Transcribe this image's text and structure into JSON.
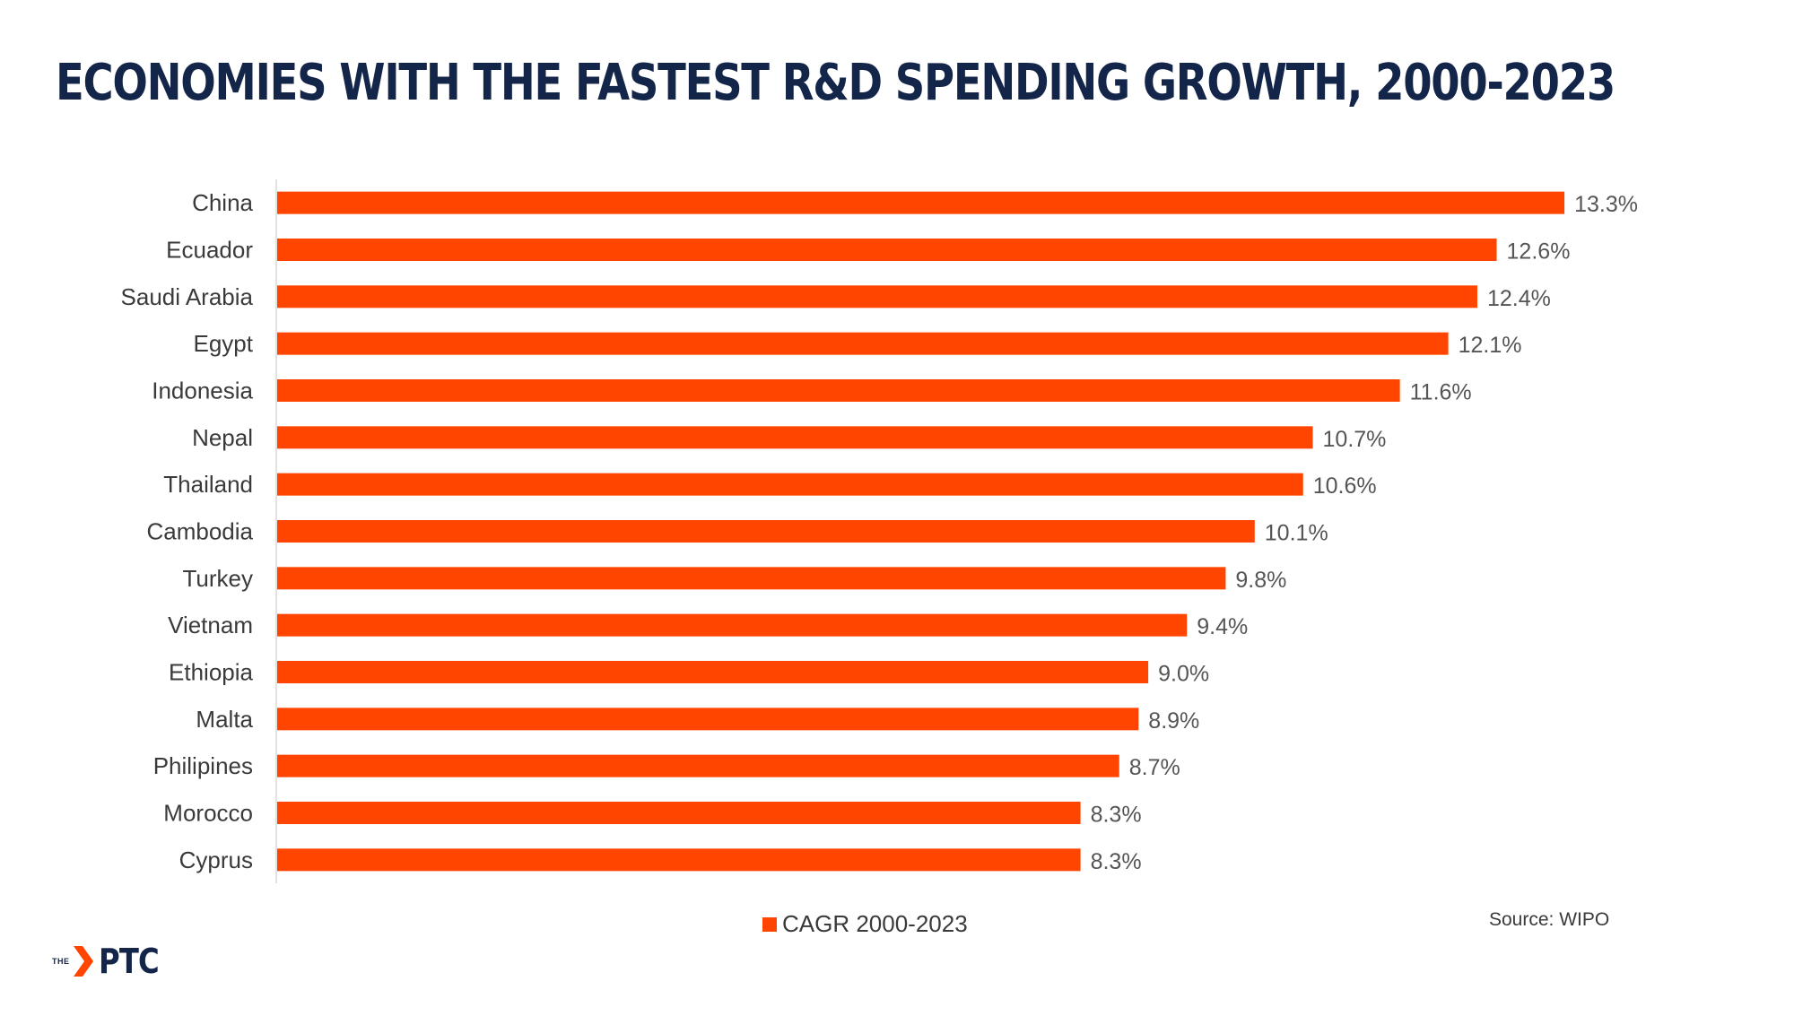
{
  "page": {
    "title": "ECONOMIES WITH THE FASTEST R&D SPENDING GROWTH, 2000-2023",
    "source": "Source: WIPO"
  },
  "logo": {
    "prefix": "THE",
    "text": "PTC"
  },
  "colors": {
    "bar": "#ff4500",
    "title": "#14254a",
    "logo_accent": "#ff4500"
  },
  "chart_data": {
    "type": "bar",
    "orientation": "horizontal",
    "title": "ECONOMIES WITH THE FASTEST R&D SPENDING GROWTH, 2000-2023",
    "xlabel": "",
    "ylabel": "",
    "categories": [
      "China",
      "Ecuador",
      "Saudi Arabia",
      "Egypt",
      "Indonesia",
      "Nepal",
      "Thailand",
      "Cambodia",
      "Turkey",
      "Vietnam",
      "Ethiopia",
      "Malta",
      "Philipines",
      "Morocco",
      "Cyprus"
    ],
    "series": [
      {
        "name": "CAGR 2000-2023",
        "values": [
          13.3,
          12.6,
          12.4,
          12.1,
          11.6,
          10.7,
          10.6,
          10.1,
          9.8,
          9.4,
          9.0,
          8.9,
          8.7,
          8.3,
          8.3
        ],
        "labels": [
          "13.3%",
          "12.6%",
          "12.4%",
          "12.1%",
          "11.6%",
          "10.7%",
          "10.6%",
          "10.1%",
          "9.8%",
          "9.4%",
          "9.0%",
          "8.9%",
          "8.7%",
          "8.3%",
          "8.3%"
        ]
      }
    ],
    "xlim": [
      0,
      14
    ],
    "grid": false,
    "legend": "bottom-center"
  }
}
